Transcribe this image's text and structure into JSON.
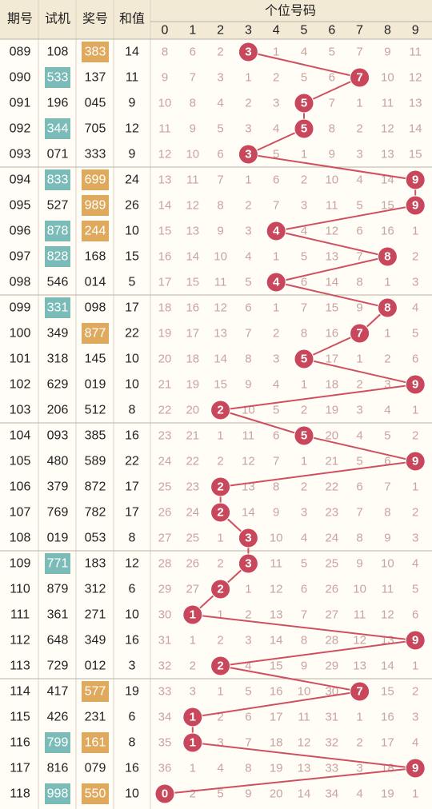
{
  "header": {
    "period": "期号",
    "trial": "试机",
    "prize": "奖号",
    "sum": "和值",
    "group_title": "个位号码",
    "digits": [
      "0",
      "1",
      "2",
      "3",
      "4",
      "5",
      "6",
      "7",
      "8",
      "9"
    ]
  },
  "colors": {
    "trial_highlight": "#7bbcb9",
    "prize_highlight": "#dfa95e",
    "ball": "#c8475a",
    "trend_line": "#cf5060",
    "omission_text": "#c9a39f",
    "header_bg": "#f2ead5",
    "background": "#fffdf6"
  },
  "chart_data": {
    "type": "table",
    "rows": [
      {
        "period": "089",
        "trial": "108",
        "trial_hl": false,
        "prize": "383",
        "prize_hl": true,
        "sum": "14",
        "digit": 3,
        "miss": [
          "8",
          "6",
          "2",
          "3",
          "1",
          "4",
          "5",
          "7",
          "9",
          "11"
        ]
      },
      {
        "period": "090",
        "trial": "533",
        "trial_hl": true,
        "prize": "137",
        "prize_hl": false,
        "sum": "11",
        "digit": 7,
        "miss": [
          "9",
          "7",
          "3",
          "1",
          "2",
          "5",
          "6",
          "7",
          "10",
          "12"
        ]
      },
      {
        "period": "091",
        "trial": "196",
        "trial_hl": false,
        "prize": "045",
        "prize_hl": false,
        "sum": "9",
        "digit": 5,
        "miss": [
          "10",
          "8",
          "4",
          "2",
          "3",
          "5",
          "7",
          "1",
          "11",
          "13"
        ]
      },
      {
        "period": "092",
        "trial": "344",
        "trial_hl": true,
        "prize": "705",
        "prize_hl": false,
        "sum": "12",
        "digit": 5,
        "miss": [
          "11",
          "9",
          "5",
          "3",
          "4",
          "5",
          "8",
          "2",
          "12",
          "14"
        ]
      },
      {
        "period": "093",
        "trial": "071",
        "trial_hl": false,
        "prize": "333",
        "prize_hl": false,
        "sum": "9",
        "digit": 3,
        "miss": [
          "12",
          "10",
          "6",
          "3",
          "5",
          "1",
          "9",
          "3",
          "13",
          "15"
        ]
      },
      {
        "period": "094",
        "trial": "833",
        "trial_hl": true,
        "prize": "699",
        "prize_hl": true,
        "sum": "24",
        "digit": 9,
        "miss": [
          "13",
          "11",
          "7",
          "1",
          "6",
          "2",
          "10",
          "4",
          "14",
          "9"
        ]
      },
      {
        "period": "095",
        "trial": "527",
        "trial_hl": false,
        "prize": "989",
        "prize_hl": true,
        "sum": "26",
        "digit": 9,
        "miss": [
          "14",
          "12",
          "8",
          "2",
          "7",
          "3",
          "11",
          "5",
          "15",
          "9"
        ]
      },
      {
        "period": "096",
        "trial": "878",
        "trial_hl": true,
        "prize": "244",
        "prize_hl": true,
        "sum": "10",
        "digit": 4,
        "miss": [
          "15",
          "13",
          "9",
          "3",
          "4",
          "4",
          "12",
          "6",
          "16",
          "1"
        ]
      },
      {
        "period": "097",
        "trial": "828",
        "trial_hl": true,
        "prize": "168",
        "prize_hl": false,
        "sum": "15",
        "digit": 8,
        "miss": [
          "16",
          "14",
          "10",
          "4",
          "1",
          "5",
          "13",
          "7",
          "8",
          "2"
        ]
      },
      {
        "period": "098",
        "trial": "546",
        "trial_hl": false,
        "prize": "014",
        "prize_hl": false,
        "sum": "5",
        "digit": 4,
        "miss": [
          "17",
          "15",
          "11",
          "5",
          "4",
          "6",
          "14",
          "8",
          "1",
          "3"
        ]
      },
      {
        "period": "099",
        "trial": "331",
        "trial_hl": true,
        "prize": "098",
        "prize_hl": false,
        "sum": "17",
        "digit": 8,
        "miss": [
          "18",
          "16",
          "12",
          "6",
          "1",
          "7",
          "15",
          "9",
          "8",
          "4"
        ]
      },
      {
        "period": "100",
        "trial": "349",
        "trial_hl": false,
        "prize": "877",
        "prize_hl": true,
        "sum": "22",
        "digit": 7,
        "miss": [
          "19",
          "17",
          "13",
          "7",
          "2",
          "8",
          "16",
          "7",
          "1",
          "5"
        ]
      },
      {
        "period": "101",
        "trial": "318",
        "trial_hl": false,
        "prize": "145",
        "prize_hl": false,
        "sum": "10",
        "digit": 5,
        "miss": [
          "20",
          "18",
          "14",
          "8",
          "3",
          "5",
          "17",
          "1",
          "2",
          "6"
        ]
      },
      {
        "period": "102",
        "trial": "629",
        "trial_hl": false,
        "prize": "019",
        "prize_hl": false,
        "sum": "10",
        "digit": 9,
        "miss": [
          "21",
          "19",
          "15",
          "9",
          "4",
          "1",
          "18",
          "2",
          "3",
          "9"
        ]
      },
      {
        "period": "103",
        "trial": "206",
        "trial_hl": false,
        "prize": "512",
        "prize_hl": false,
        "sum": "8",
        "digit": 2,
        "miss": [
          "22",
          "20",
          "2",
          "10",
          "5",
          "2",
          "19",
          "3",
          "4",
          "1"
        ]
      },
      {
        "period": "104",
        "trial": "093",
        "trial_hl": false,
        "prize": "385",
        "prize_hl": false,
        "sum": "16",
        "digit": 5,
        "miss": [
          "23",
          "21",
          "1",
          "11",
          "6",
          "5",
          "20",
          "4",
          "5",
          "2"
        ]
      },
      {
        "period": "105",
        "trial": "480",
        "trial_hl": false,
        "prize": "589",
        "prize_hl": false,
        "sum": "22",
        "digit": 9,
        "miss": [
          "24",
          "22",
          "2",
          "12",
          "7",
          "1",
          "21",
          "5",
          "6",
          "9"
        ]
      },
      {
        "period": "106",
        "trial": "379",
        "trial_hl": false,
        "prize": "872",
        "prize_hl": false,
        "sum": "17",
        "digit": 2,
        "miss": [
          "25",
          "23",
          "2",
          "13",
          "8",
          "2",
          "22",
          "6",
          "7",
          "1"
        ]
      },
      {
        "period": "107",
        "trial": "769",
        "trial_hl": false,
        "prize": "782",
        "prize_hl": false,
        "sum": "17",
        "digit": 2,
        "miss": [
          "26",
          "24",
          "2",
          "14",
          "9",
          "3",
          "23",
          "7",
          "8",
          "2"
        ]
      },
      {
        "period": "108",
        "trial": "019",
        "trial_hl": false,
        "prize": "053",
        "prize_hl": false,
        "sum": "8",
        "digit": 3,
        "miss": [
          "27",
          "25",
          "1",
          "3",
          "10",
          "4",
          "24",
          "8",
          "9",
          "3"
        ]
      },
      {
        "period": "109",
        "trial": "771",
        "trial_hl": true,
        "prize": "183",
        "prize_hl": false,
        "sum": "12",
        "digit": 3,
        "miss": [
          "28",
          "26",
          "2",
          "3",
          "11",
          "5",
          "25",
          "9",
          "10",
          "4"
        ]
      },
      {
        "period": "110",
        "trial": "879",
        "trial_hl": false,
        "prize": "312",
        "prize_hl": false,
        "sum": "6",
        "digit": 2,
        "miss": [
          "29",
          "27",
          "2",
          "1",
          "12",
          "6",
          "26",
          "10",
          "11",
          "5"
        ]
      },
      {
        "period": "111",
        "trial": "361",
        "trial_hl": false,
        "prize": "271",
        "prize_hl": false,
        "sum": "10",
        "digit": 1,
        "miss": [
          "30",
          "1",
          "1",
          "2",
          "13",
          "7",
          "27",
          "11",
          "12",
          "6"
        ]
      },
      {
        "period": "112",
        "trial": "648",
        "trial_hl": false,
        "prize": "349",
        "prize_hl": false,
        "sum": "16",
        "digit": 9,
        "miss": [
          "31",
          "1",
          "2",
          "3",
          "14",
          "8",
          "28",
          "12",
          "13",
          "9"
        ]
      },
      {
        "period": "113",
        "trial": "729",
        "trial_hl": false,
        "prize": "012",
        "prize_hl": false,
        "sum": "3",
        "digit": 2,
        "miss": [
          "32",
          "2",
          "2",
          "4",
          "15",
          "9",
          "29",
          "13",
          "14",
          "1"
        ]
      },
      {
        "period": "114",
        "trial": "417",
        "trial_hl": false,
        "prize": "577",
        "prize_hl": true,
        "sum": "19",
        "digit": 7,
        "miss": [
          "33",
          "3",
          "1",
          "5",
          "16",
          "10",
          "30",
          "7",
          "15",
          "2"
        ]
      },
      {
        "period": "115",
        "trial": "426",
        "trial_hl": false,
        "prize": "231",
        "prize_hl": false,
        "sum": "6",
        "digit": 1,
        "miss": [
          "34",
          "1",
          "2",
          "6",
          "17",
          "11",
          "31",
          "1",
          "16",
          "3"
        ]
      },
      {
        "period": "116",
        "trial": "799",
        "trial_hl": true,
        "prize": "161",
        "prize_hl": true,
        "sum": "8",
        "digit": 1,
        "miss": [
          "35",
          "1",
          "3",
          "7",
          "18",
          "12",
          "32",
          "2",
          "17",
          "4"
        ]
      },
      {
        "period": "117",
        "trial": "816",
        "trial_hl": false,
        "prize": "079",
        "prize_hl": false,
        "sum": "16",
        "digit": 9,
        "miss": [
          "36",
          "1",
          "4",
          "8",
          "19",
          "13",
          "33",
          "3",
          "18",
          "9"
        ]
      },
      {
        "period": "118",
        "trial": "998",
        "trial_hl": true,
        "prize": "550",
        "prize_hl": true,
        "sum": "10",
        "digit": 0,
        "miss": [
          "0",
          "2",
          "5",
          "9",
          "20",
          "14",
          "34",
          "4",
          "19",
          "1"
        ]
      }
    ]
  }
}
